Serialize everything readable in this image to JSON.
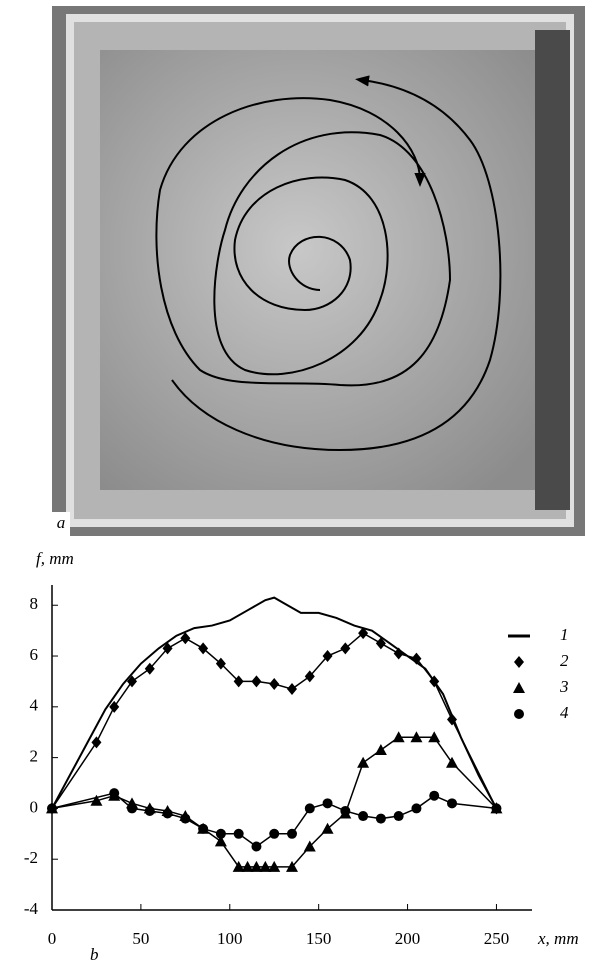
{
  "photo_label": "a",
  "chart_data": {
    "type": "line",
    "panel_label": "b",
    "ylabel": "f, mm",
    "xlabel": "x, mm",
    "xlim": [
      0,
      270
    ],
    "ylim": [
      -4,
      8.6
    ],
    "xticks": [
      0,
      50,
      100,
      150,
      200,
      250
    ],
    "yticks": [
      -4,
      -2,
      0,
      2,
      4,
      6,
      8
    ],
    "grid": false,
    "series": [
      {
        "name": "1",
        "color": "#000000",
        "marker": "none",
        "x": [
          0,
          10,
          20,
          30,
          40,
          50,
          60,
          70,
          80,
          90,
          100,
          110,
          120,
          125,
          130,
          140,
          150,
          160,
          170,
          180,
          190,
          200,
          210,
          220,
          230,
          240,
          250
        ],
        "values": [
          0,
          1.3,
          2.6,
          3.9,
          4.9,
          5.7,
          6.3,
          6.8,
          7.1,
          7.2,
          7.4,
          7.8,
          8.2,
          8.3,
          8.1,
          7.7,
          7.7,
          7.5,
          7.2,
          7.0,
          6.5,
          6.0,
          5.5,
          4.5,
          2.8,
          1.3,
          0
        ]
      },
      {
        "name": "2",
        "color": "#000000",
        "marker": "diamond",
        "x": [
          0,
          25,
          35,
          45,
          55,
          65,
          75,
          85,
          95,
          105,
          115,
          125,
          135,
          145,
          155,
          165,
          175,
          185,
          195,
          205,
          215,
          225,
          250
        ],
        "values": [
          0,
          2.6,
          4.0,
          5.0,
          5.5,
          6.3,
          6.7,
          6.3,
          5.7,
          5.0,
          5.0,
          4.9,
          4.7,
          5.2,
          6.0,
          6.3,
          6.9,
          6.5,
          6.1,
          5.9,
          5.0,
          3.5,
          0
        ]
      },
      {
        "name": "3",
        "color": "#000000",
        "marker": "triangle",
        "x": [
          0,
          25,
          35,
          45,
          55,
          65,
          75,
          85,
          95,
          105,
          110,
          115,
          120,
          125,
          135,
          145,
          155,
          165,
          175,
          185,
          195,
          205,
          215,
          225,
          250
        ],
        "values": [
          0,
          0.3,
          0.5,
          0.2,
          0,
          -0.1,
          -0.3,
          -0.8,
          -1.3,
          -2.3,
          -2.3,
          -2.3,
          -2.3,
          -2.3,
          -2.3,
          -1.5,
          -0.8,
          -0.2,
          1.8,
          2.3,
          2.8,
          2.8,
          2.8,
          1.8,
          0
        ]
      },
      {
        "name": "4",
        "color": "#000000",
        "marker": "circle",
        "x": [
          0,
          35,
          45,
          55,
          65,
          75,
          85,
          95,
          105,
          115,
          125,
          135,
          145,
          155,
          165,
          175,
          185,
          195,
          205,
          215,
          225,
          250
        ],
        "values": [
          0,
          0.6,
          0,
          -0.1,
          -0.2,
          -0.4,
          -0.8,
          -1.0,
          -1.0,
          -1.5,
          -1.0,
          -1.0,
          0,
          0.2,
          -0.1,
          -0.3,
          -0.4,
          -0.3,
          0,
          0.5,
          0.2,
          0
        ]
      }
    ]
  }
}
